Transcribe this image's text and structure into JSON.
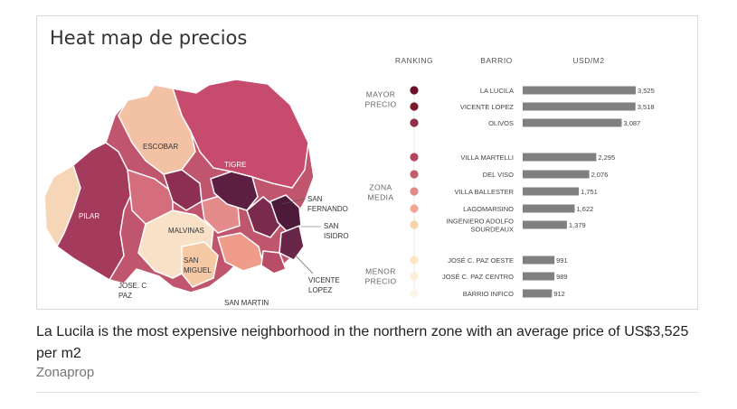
{
  "chart_data": {
    "type": "bar",
    "title": "Heat map de precios",
    "column_headers": {
      "ranking": "RANKING",
      "barrio": "BARRIO",
      "value": "USD/M2"
    },
    "groups": [
      {
        "label_lines": [
          "MAYOR",
          "PRECIO"
        ]
      },
      {
        "label_lines": [
          "ZONA",
          "MEDIA"
        ]
      },
      {
        "label_lines": [
          "MENOR",
          "PRECIO"
        ]
      }
    ],
    "categories": [
      [
        "LA LUCILA"
      ],
      [
        "VICENTE LOPEZ"
      ],
      [
        "OLIVOS"
      ],
      [
        "VILLA MARTELLI"
      ],
      [
        "DEL VISO"
      ],
      [
        "VILLA BALLESTER"
      ],
      [
        "LAGOMARSINO"
      ],
      [
        "INGENIERO ADOLFO",
        "SOURDEAUX"
      ],
      [
        "JOSÉ C. PAZ OESTE"
      ],
      [
        "JOSÉ C. PAZ CENTRO"
      ],
      [
        "BARRIO INFICO"
      ]
    ],
    "values": [
      3525,
      3518,
      3087,
      2295,
      2076,
      1751,
      1622,
      1379,
      991,
      989,
      912
    ],
    "value_labels": [
      "3,525",
      "3,518",
      "3,087",
      "2,295",
      "2,076",
      "1,751",
      "1,622",
      "1,379",
      "991",
      "989",
      "912"
    ],
    "group_of_item": [
      0,
      0,
      0,
      1,
      1,
      1,
      1,
      1,
      2,
      2,
      2
    ],
    "dot_colors": [
      "#6b0f2a",
      "#7a1a2c",
      "#8c2f47",
      "#b5455f",
      "#c25d6e",
      "#e08a8a",
      "#f0a893",
      "#f7d3a8",
      "#fbe6c4",
      "#fcefd6",
      "#fdf5e6"
    ],
    "bar_color": "#808080",
    "xlim": [
      0,
      3525
    ],
    "map_labels": [
      [
        "ESCOBAR"
      ],
      [
        "TIGRE"
      ],
      [
        "PILAR"
      ],
      [
        "MALVINAS"
      ],
      [
        "SAN",
        "MIGUEL"
      ],
      [
        "JOSE. C",
        "PAZ"
      ],
      [
        "SAN MARTIN"
      ],
      [
        "SAN",
        "FERNANDO"
      ],
      [
        "SAN",
        "ISIDRO"
      ],
      [
        "VICENTE",
        "LOPEZ"
      ]
    ]
  },
  "caption": "La Lucila is the most expensive neighborhood in the northern zone with an average price of US$3,525 per m2",
  "source": "Zonaprop"
}
